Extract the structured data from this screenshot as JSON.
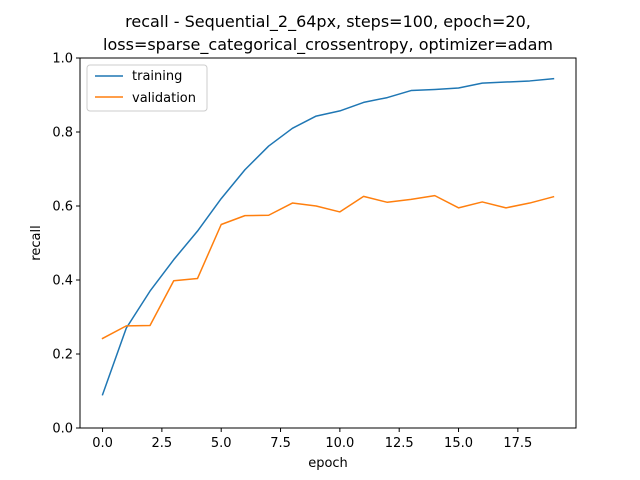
{
  "chart_data": {
    "type": "line",
    "title_line1": "recall - Sequential_2_64px, steps=100, epoch=20,",
    "title_line2": "loss=sparse_categorical_crossentropy, optimizer=adam",
    "xlabel": "epoch",
    "ylabel": "recall",
    "xlim": [
      -0.95,
      19.95
    ],
    "ylim": [
      0.0,
      1.0
    ],
    "xticks": [
      0.0,
      2.5,
      5.0,
      7.5,
      10.0,
      12.5,
      15.0,
      17.5
    ],
    "xtick_labels": [
      "0.0",
      "2.5",
      "5.0",
      "7.5",
      "10.0",
      "12.5",
      "15.0",
      "17.5"
    ],
    "yticks": [
      0.0,
      0.2,
      0.4,
      0.6,
      0.8,
      1.0
    ],
    "ytick_labels": [
      "0.0",
      "0.2",
      "0.4",
      "0.6",
      "0.8",
      "1.0"
    ],
    "legend_position": "top-left",
    "grid": false,
    "x": [
      0,
      1,
      2,
      3,
      4,
      5,
      6,
      7,
      8,
      9,
      10,
      11,
      12,
      13,
      14,
      15,
      16,
      17,
      18,
      19
    ],
    "series": [
      {
        "name": "training",
        "color": "#1f77b4",
        "values": [
          0.09,
          0.27,
          0.37,
          0.455,
          0.532,
          0.62,
          0.698,
          0.762,
          0.81,
          0.843,
          0.857,
          0.88,
          0.893,
          0.912,
          0.915,
          0.919,
          0.932,
          0.935,
          0.938,
          0.944
        ]
      },
      {
        "name": "validation",
        "color": "#ff7f0e",
        "values": [
          0.242,
          0.276,
          0.277,
          0.398,
          0.404,
          0.55,
          0.574,
          0.575,
          0.608,
          0.6,
          0.584,
          0.626,
          0.61,
          0.618,
          0.628,
          0.595,
          0.611,
          0.595,
          0.608,
          0.625
        ]
      }
    ]
  }
}
